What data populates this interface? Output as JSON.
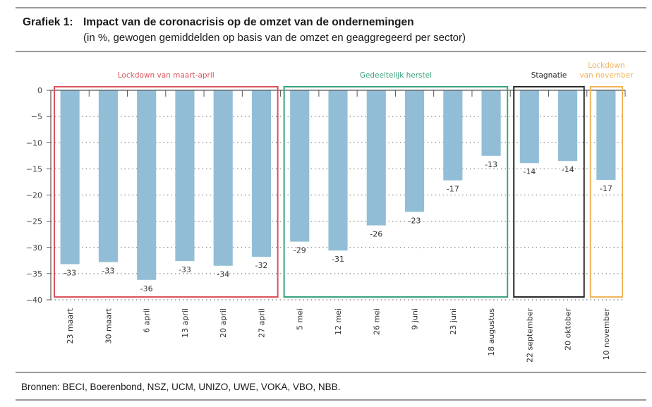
{
  "header": {
    "figure_number": "Grafiek 1:",
    "title": "Impact van de coronacrisis op de omzet van de ondernemingen",
    "subtitle": "(in %, gewogen gemiddelden op basis van de omzet en geaggregeerd per sector)"
  },
  "footer": {
    "source": "Bronnen: BECI, Boerenbond, NSZ, UCM, UNIZO, UWE, VOKA, VBO, NBB."
  },
  "chart_data": {
    "type": "bar",
    "title": "Impact van de coronacrisis op de omzet van de ondernemingen",
    "subtitle": "(in %, gewogen gemiddelden op basis van de omzet en geaggregeerd per sector)",
    "xlabel": "",
    "ylabel": "",
    "ylim": [
      -40,
      0
    ],
    "yticks": [
      0,
      -5,
      -10,
      -15,
      -20,
      -25,
      -30,
      -35,
      -40
    ],
    "ytick_labels": [
      "0",
      "−5",
      "−10",
      "−15",
      "−20",
      "−25",
      "−30",
      "−35",
      "−40"
    ],
    "grid": "horizontal dotted",
    "bar_color": "#92bdd6",
    "categories": [
      "23 maart",
      "30 maart",
      "6 april",
      "13 april",
      "20 april",
      "27 april",
      "5 mei",
      "12 mei",
      "26 mei",
      "9 juni",
      "23 juni",
      "18 augustus",
      "22 september",
      "20 oktober",
      "10 november"
    ],
    "values": [
      -33.2,
      -32.8,
      -36.2,
      -32.6,
      -33.5,
      -31.8,
      -28.9,
      -30.6,
      -25.8,
      -23.2,
      -17.2,
      -12.5,
      -13.9,
      -13.5,
      -17.1
    ],
    "data_labels": [
      "-33",
      "-33",
      "-36",
      "-33",
      "-34",
      "-32",
      "-29",
      "-31",
      "-26",
      "-23",
      "-17",
      "-13",
      "-14",
      "-14",
      "-17"
    ],
    "groups": [
      {
        "label": "Lockdown van maart-april",
        "start": 0,
        "end": 5,
        "color": "#d9545a"
      },
      {
        "label": "Gedeeltelijk herstel",
        "start": 6,
        "end": 11,
        "color": "#3aa37a"
      },
      {
        "label": "Stagnatie",
        "start": 12,
        "end": 13,
        "color": "#2a2a2a"
      },
      {
        "label": "Lockdown\nvan november",
        "start": 14,
        "end": 14,
        "color": "#f0b45a"
      }
    ]
  }
}
